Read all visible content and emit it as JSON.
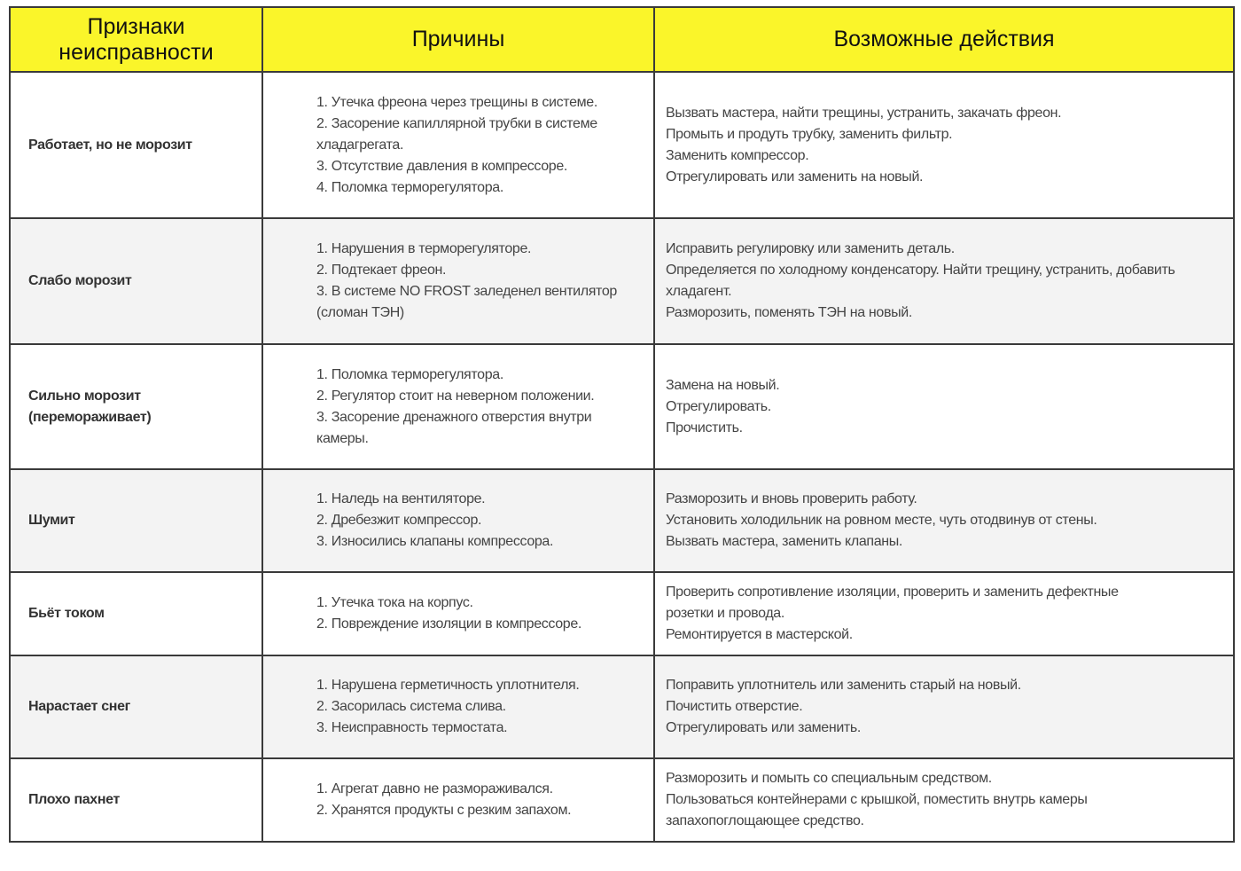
{
  "header": {
    "symptoms": [
      "Признаки",
      "неисправности"
    ],
    "causes": "Причины",
    "actions": "Возможные действия"
  },
  "colors": {
    "header_bg": "#faf52a",
    "alt_row_bg": "#f3f3f3",
    "border": "#3a3a3a"
  },
  "rows": [
    {
      "symptom": [
        "Работает, но не морозит"
      ],
      "causes": [
        "1. Утечка фреона через трещины в системе.",
        "2. Засорение капиллярной трубки в системе",
        "хладагрегата.",
        "3. Отсутствие давления в компрессоре.",
        "4. Поломка терморегулятора."
      ],
      "actions": [
        "Вызвать мастера, найти трещины, устранить, закачать фреон.",
        "Промыть и продуть трубку, заменить фильтр.",
        "Заменить компрессор.",
        "Отрегулировать или заменить на новый."
      ]
    },
    {
      "symptom": [
        "Слабо морозит"
      ],
      "causes": [
        "1. Нарушения в терморегуляторе.",
        "2. Подтекает фреон.",
        "3. В системе NO FROST заледенел вентилятор",
        "(сломан ТЭН)"
      ],
      "actions": [
        "Исправить регулировку или заменить деталь.",
        "Определяется по холодному конденсатору. Найти трещину, устранить, добавить",
        "хладагент.",
        "Разморозить, поменять ТЭН на новый."
      ]
    },
    {
      "symptom": [
        "Сильно морозит",
        "(переморaживает)"
      ],
      "causes": [
        "1. Поломка терморегулятора.",
        "2. Регулятор стоит на неверном положении.",
        "3. Засорение дренажного отверстия внутри",
        "камеры."
      ],
      "actions": [
        "Замена на новый.",
        "Отрегулировать.",
        "Прочистить."
      ]
    },
    {
      "symptom": [
        "Шумит"
      ],
      "causes": [
        "1. Наледь на вентиляторе.",
        "2. Дребезжит компрессор.",
        "3. Износились клапаны компрессора."
      ],
      "actions": [
        "Разморозить и вновь проверить работу.",
        "Установить холодильник на ровном месте, чуть отодвинув от стены.",
        "Вызвать мастера, заменить клапаны."
      ]
    },
    {
      "symptom": [
        "Бьёт током"
      ],
      "causes": [
        "1. Утечка тока на корпус.",
        "2. Повреждение изоляции в компрессоре."
      ],
      "actions": [
        "Проверить сопротивление изоляции, проверить и заменить дефектные",
        "розетки и провода.",
        "Ремонтируется в мастерской."
      ]
    },
    {
      "symptom": [
        "Нарастает снег"
      ],
      "causes": [
        "1. Нарушена герметичность уплотнителя.",
        "2. Засорилась система слива.",
        "3. Неисправность термостата."
      ],
      "actions": [
        "Поправить уплотнитель или заменить старый на новый.",
        "Почистить отверстие.",
        "Отрегулировать или заменить."
      ]
    },
    {
      "symptom": [
        "Плохо пахнет"
      ],
      "causes": [
        "1. Агрегат давно не размораживался.",
        "2. Хранятся продукты с резким запахом."
      ],
      "actions": [
        "Разморозить и помыть со специальным средством.",
        "Пользоваться контейнерами с крышкой, поместить внутрь камеры",
        "запахопоглощающее средство."
      ]
    }
  ]
}
